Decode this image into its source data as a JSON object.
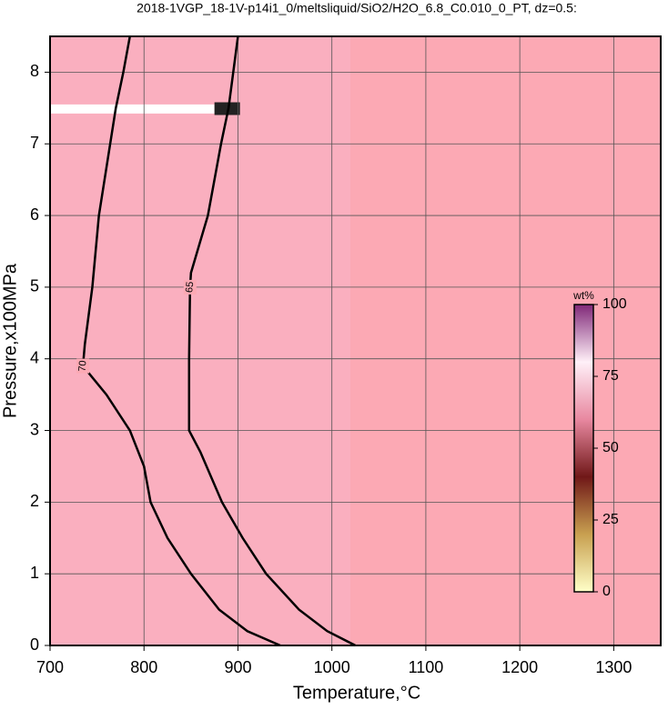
{
  "chart_data": {
    "type": "contour",
    "title": "2018-1VGP_18-1V-p14i1_0/meltsliquid/SiO2/H2O_6.8_C0.010_0_PT, dz=0.5:",
    "x_label": "Temperature,°C",
    "y_label": "Pressure,x100MPa",
    "xlim": [
      700,
      1350
    ],
    "ylim": [
      0,
      8.5
    ],
    "xticks": [
      700,
      800,
      900,
      1000,
      1100,
      1200,
      1300
    ],
    "yticks": [
      0,
      1,
      2,
      3,
      4,
      5,
      6,
      7,
      8
    ],
    "grid": true,
    "background": "#fca9b4",
    "contours": [
      {
        "level": 70,
        "color": "#000000",
        "x": [
          785,
          778,
          770,
          752,
          745,
          737,
          735,
          760,
          785,
          800,
          807,
          825,
          850,
          880,
          910,
          945
        ],
        "y": [
          8.5,
          8,
          7.5,
          6,
          5,
          4.2,
          3.9,
          3.5,
          3,
          2.5,
          2,
          1.5,
          1,
          0.5,
          0.2,
          0
        ]
      },
      {
        "level": 65,
        "color": "#000000",
        "x": [
          900,
          895,
          890,
          882,
          868,
          850,
          849,
          848,
          848,
          860,
          883,
          905,
          930,
          965,
          995,
          1025
        ],
        "y": [
          8.5,
          8,
          7.5,
          7,
          6,
          5.2,
          5,
          4,
          3,
          2.7,
          2,
          1.5,
          1,
          0.5,
          0.2,
          0
        ]
      }
    ],
    "colorbar": {
      "label": "wt%",
      "lim": [
        0,
        100
      ],
      "ticks": [
        0,
        25,
        50,
        75,
        100
      ],
      "colors": [
        "#ffffc8",
        "#c8a050",
        "#701818",
        "#e888a0",
        "#fff0f8",
        "#802878"
      ]
    }
  }
}
